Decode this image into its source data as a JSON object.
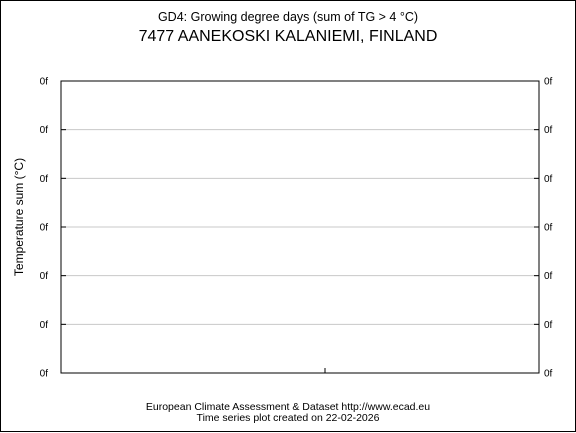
{
  "chart_data": {
    "type": "line",
    "title": "GD4: Growing degree days (sum of TG > 4 °C)",
    "subtitle": "7477 AANEKOSKI KALANIEMI, FINLAND",
    "ylabel": "Temperature sum (°C)",
    "xlabel": "",
    "y_tick_labels": [
      "0f",
      "0f",
      "0f",
      "0f",
      "0f",
      "0f",
      "0f"
    ],
    "grid": true,
    "series": []
  },
  "footer": {
    "line1": "European Climate Assessment & Dataset  http://www.ecad.eu",
    "line2": "Time series plot created on 22-02-2026"
  }
}
